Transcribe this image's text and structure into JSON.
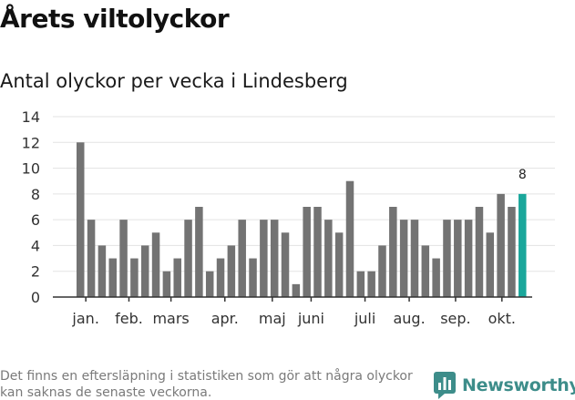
{
  "header": {
    "title": "Årets viltolyckor",
    "subtitle": "Antal olyckor per vecka i Lindesberg"
  },
  "footer": {
    "note": "Det finns en eftersläpning i statistiken som gör att några olyckor kan saknas de senaste veckorna.",
    "brand": "Newsworthy"
  },
  "colors": {
    "bar": "#737373",
    "highlight": "#1aa79b",
    "grid": "#e3e3e3",
    "axis": "#333333",
    "brand": "#3d8d8a"
  },
  "chart_data": {
    "type": "bar",
    "title": "Antal olyckor per vecka i Lindesberg",
    "xlabel": "",
    "ylabel": "",
    "ylim": [
      0,
      14
    ],
    "yticks": [
      0,
      2,
      4,
      6,
      8,
      10,
      12,
      14
    ],
    "grid": true,
    "values": [
      12,
      6,
      4,
      3,
      6,
      3,
      4,
      5,
      2,
      3,
      6,
      7,
      2,
      3,
      4,
      6,
      3,
      6,
      6,
      5,
      1,
      7,
      7,
      6,
      5,
      9,
      2,
      2,
      4,
      7,
      6,
      6,
      4,
      3,
      6,
      6,
      6,
      7,
      5,
      8,
      7,
      8
    ],
    "highlight_index": 41,
    "highlight_label": "8",
    "months": [
      {
        "label": "jan.",
        "index": 0.5
      },
      {
        "label": "feb.",
        "index": 4.5
      },
      {
        "label": "mars",
        "index": 8.4
      },
      {
        "label": "apr.",
        "index": 13.4
      },
      {
        "label": "maj",
        "index": 17.8
      },
      {
        "label": "juni",
        "index": 21.4
      },
      {
        "label": "juli",
        "index": 26.4
      },
      {
        "label": "aug.",
        "index": 30.5
      },
      {
        "label": "sep.",
        "index": 34.8
      },
      {
        "label": "okt.",
        "index": 39.1
      }
    ]
  }
}
